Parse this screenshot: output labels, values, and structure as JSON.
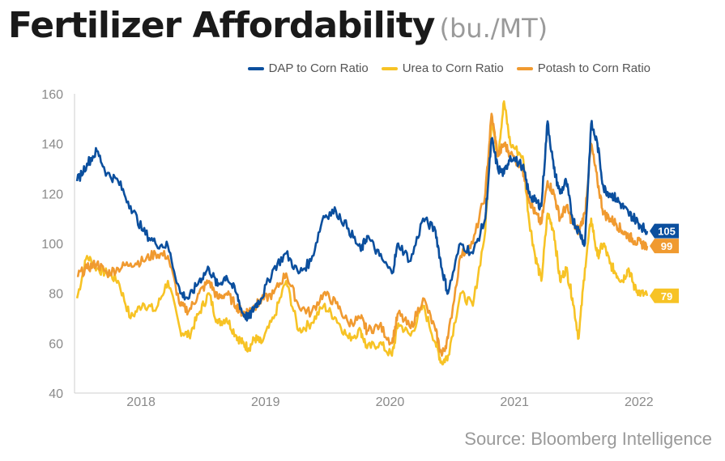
{
  "header": {
    "title": "Fertilizer Affordability",
    "unit": "(bu./MT)"
  },
  "source": "Source: Bloomberg Intelligence",
  "colors": {
    "dap": "#0b4f9e",
    "urea": "#f7c325",
    "potash": "#f09a30",
    "axis": "#cfcfcf"
  },
  "chart_data": {
    "type": "line",
    "title": "Fertilizer Affordability",
    "ylabel": "",
    "xlabel": "",
    "ylim": [
      40,
      160
    ],
    "yticks": [
      40,
      60,
      80,
      100,
      120,
      140,
      160
    ],
    "xlim": [
      2017.7,
      2022.32
    ],
    "xticks": [
      {
        "label": "2018",
        "x": 2018.0
      },
      {
        "label": "2019",
        "x": 2019.0
      },
      {
        "label": "2020",
        "x": 2020.0
      },
      {
        "label": "2021",
        "x": 2021.0
      },
      {
        "label": "2022",
        "x": 2022.0
      }
    ],
    "legend_position": "top-right",
    "grid": false,
    "series": [
      {
        "key": "dap",
        "name": "DAP to Corn Ratio",
        "end_label": "105",
        "x": [
          2017.72,
          2017.8,
          2017.88,
          2017.96,
          2018.05,
          2018.15,
          2018.25,
          2018.35,
          2018.45,
          2018.55,
          2018.62,
          2018.7,
          2018.78,
          2018.85,
          2018.92,
          2019.0,
          2019.05,
          2019.1,
          2019.15,
          2019.2,
          2019.3,
          2019.4,
          2019.5,
          2019.6,
          2019.7,
          2019.8,
          2019.9,
          2020.0,
          2020.05,
          2020.15,
          2020.25,
          2020.3,
          2020.4,
          2020.5,
          2020.6,
          2020.65,
          2020.7,
          2020.8,
          2020.9,
          2021.0,
          2021.05,
          2021.1,
          2021.15,
          2021.2,
          2021.3,
          2021.35,
          2021.4,
          2021.45,
          2021.5,
          2021.55,
          2021.6,
          2021.65,
          2021.7,
          2021.75,
          2021.8,
          2021.85,
          2021.9,
          2021.95,
          2022.0,
          2022.05,
          2022.1,
          2022.15,
          2022.2,
          2022.25,
          2022.3
        ],
        "values": [
          125,
          132,
          137,
          128,
          125,
          115,
          105,
          100,
          99,
          80,
          78,
          85,
          90,
          83,
          87,
          80,
          72,
          70,
          75,
          78,
          90,
          96,
          88,
          93,
          111,
          113,
          106,
          97,
          103,
          95,
          88,
          100,
          93,
          110,
          105,
          90,
          80,
          100,
          96,
          110,
          142,
          130,
          128,
          135,
          131,
          120,
          117,
          115,
          149,
          130,
          120,
          125,
          110,
          105,
          100,
          148,
          140,
          122,
          120,
          118,
          115,
          112,
          110,
          107,
          105
        ]
      },
      {
        "key": "urea",
        "name": "Urea to Corn Ratio",
        "end_label": "79",
        "x": [
          2017.72,
          2017.8,
          2017.88,
          2017.96,
          2018.05,
          2018.15,
          2018.25,
          2018.35,
          2018.45,
          2018.55,
          2018.62,
          2018.7,
          2018.78,
          2018.85,
          2018.92,
          2019.0,
          2019.05,
          2019.1,
          2019.15,
          2019.2,
          2019.3,
          2019.4,
          2019.5,
          2019.6,
          2019.7,
          2019.8,
          2019.9,
          2020.0,
          2020.05,
          2020.15,
          2020.25,
          2020.3,
          2020.4,
          2020.5,
          2020.6,
          2020.65,
          2020.7,
          2020.8,
          2020.9,
          2021.0,
          2021.05,
          2021.1,
          2021.15,
          2021.2,
          2021.3,
          2021.35,
          2021.4,
          2021.45,
          2021.5,
          2021.55,
          2021.6,
          2021.65,
          2021.7,
          2021.75,
          2021.8,
          2021.85,
          2021.9,
          2021.95,
          2022.0,
          2022.05,
          2022.1,
          2022.15,
          2022.2,
          2022.25,
          2022.3
        ],
        "values": [
          78,
          95,
          90,
          88,
          85,
          70,
          76,
          73,
          85,
          65,
          63,
          72,
          80,
          68,
          70,
          63,
          60,
          58,
          62,
          60,
          70,
          85,
          65,
          68,
          75,
          70,
          62,
          65,
          58,
          60,
          55,
          68,
          63,
          75,
          60,
          52,
          55,
          80,
          75,
          105,
          150,
          135,
          157,
          140,
          135,
          110,
          95,
          85,
          112,
          105,
          85,
          90,
          78,
          62,
          90,
          110,
          95,
          100,
          92,
          88,
          85,
          90,
          82,
          80,
          79
        ]
      },
      {
        "key": "potash",
        "name": "Potash to Corn Ratio",
        "end_label": "99",
        "x": [
          2017.72,
          2017.8,
          2017.88,
          2017.96,
          2018.05,
          2018.15,
          2018.25,
          2018.35,
          2018.45,
          2018.55,
          2018.62,
          2018.7,
          2018.78,
          2018.85,
          2018.92,
          2019.0,
          2019.05,
          2019.1,
          2019.15,
          2019.2,
          2019.3,
          2019.4,
          2019.5,
          2019.6,
          2019.7,
          2019.8,
          2019.9,
          2020.0,
          2020.05,
          2020.15,
          2020.25,
          2020.3,
          2020.4,
          2020.5,
          2020.6,
          2020.65,
          2020.7,
          2020.8,
          2020.9,
          2021.0,
          2021.05,
          2021.1,
          2021.15,
          2021.2,
          2021.3,
          2021.35,
          2021.4,
          2021.45,
          2021.5,
          2021.55,
          2021.6,
          2021.65,
          2021.7,
          2021.75,
          2021.8,
          2021.85,
          2021.9,
          2021.95,
          2022.0,
          2022.05,
          2022.1,
          2022.15,
          2022.2,
          2022.25,
          2022.3
        ],
        "values": [
          87,
          90,
          92,
          88,
          90,
          92,
          93,
          96,
          95,
          75,
          73,
          80,
          85,
          78,
          80,
          75,
          72,
          73,
          75,
          77,
          80,
          88,
          75,
          72,
          80,
          76,
          68,
          70,
          65,
          67,
          60,
          72,
          66,
          78,
          65,
          55,
          62,
          95,
          100,
          120,
          152,
          135,
          140,
          136,
          130,
          118,
          112,
          108,
          125,
          120,
          110,
          115,
          108,
          105,
          112,
          140,
          125,
          112,
          110,
          108,
          105,
          103,
          101,
          100,
          99
        ]
      }
    ]
  }
}
